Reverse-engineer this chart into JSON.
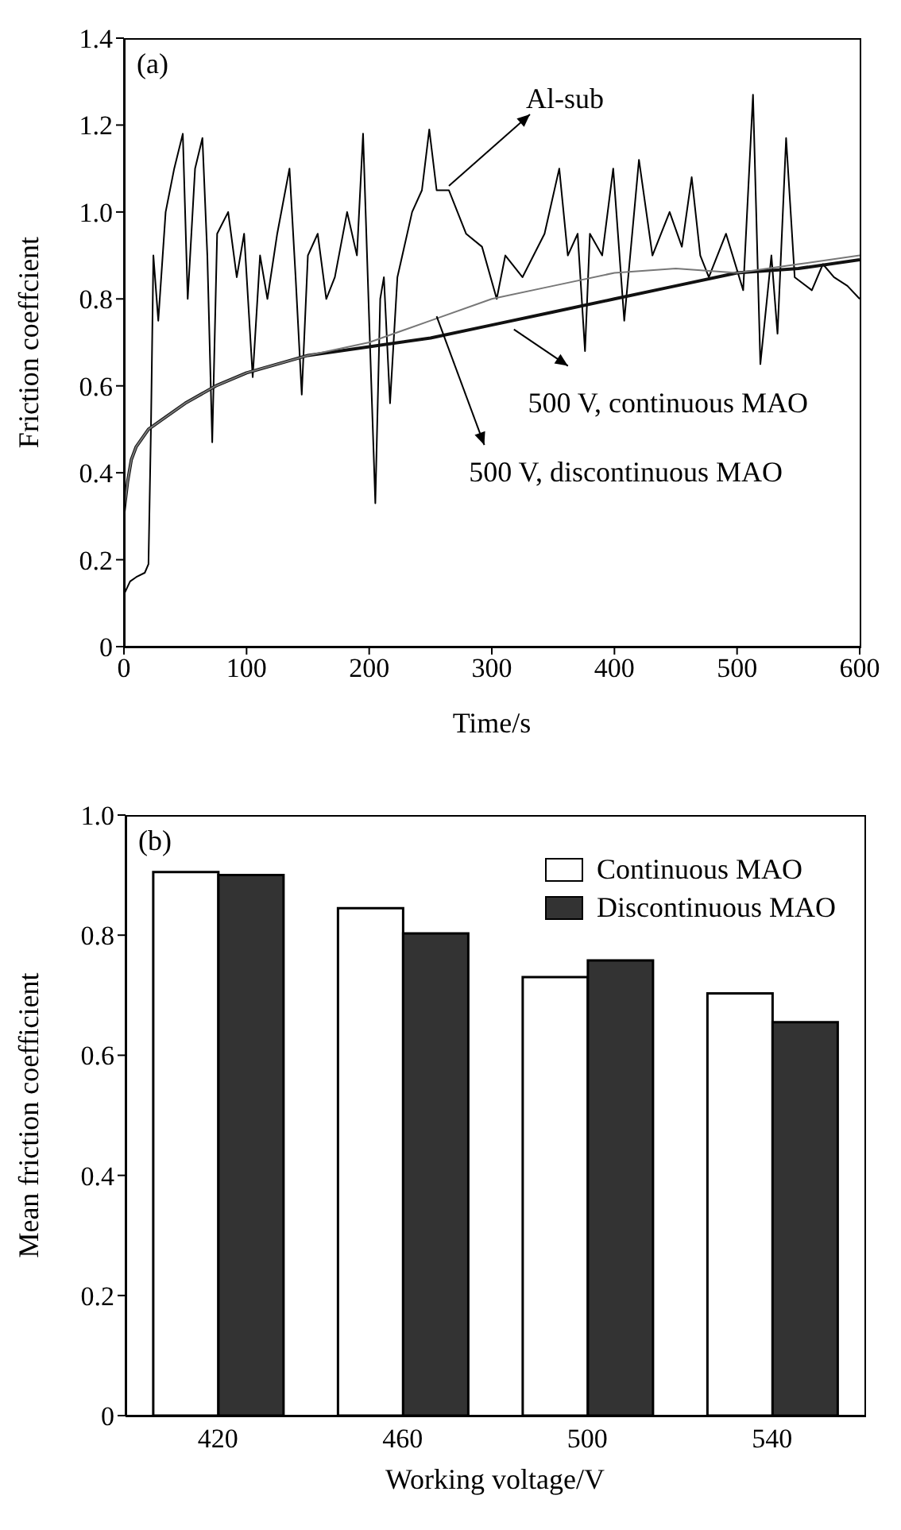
{
  "chart_data": [
    {
      "type": "line",
      "xlabel": "Time/s",
      "ylabel": "Friction coeffcient",
      "xlim": [
        0,
        600
      ],
      "xticks": [
        0,
        100,
        200,
        300,
        400,
        500,
        600
      ],
      "ylim": [
        0,
        1.4
      ],
      "yticks": [
        0,
        0.2,
        0.4,
        0.6,
        0.8,
        {
          "value": 1,
          "label": "1.0"
        },
        1.2,
        1.4
      ],
      "marker": "none",
      "line_style": "solid",
      "annotations": [
        "(a)",
        {
          "text": "Al-sub",
          "x": 265,
          "y": 1.06
        },
        {
          "text": "500 V, continuous MAO",
          "x": 318,
          "y": 0.73
        },
        {
          "text": "500 V, discontinuous MAO",
          "x": 255,
          "y": 0.76
        }
      ],
      "series": [
        {
          "color": "#000000",
          "x": [
            0,
            5,
            10,
            17,
            20,
            22,
            24,
            28,
            34,
            41,
            48,
            52,
            58,
            64,
            68,
            72,
            76,
            85,
            92,
            98,
            105,
            111,
            117,
            125,
            135,
            140,
            145,
            150,
            158,
            165,
            172,
            182,
            190,
            195,
            200,
            205,
            209,
            212,
            217,
            223,
            235,
            243,
            249,
            255,
            265,
            279,
            292,
            304,
            311,
            325,
            343,
            355,
            362,
            370,
            376,
            380,
            390,
            399,
            408,
            420,
            431,
            445,
            455,
            463,
            470,
            477,
            491,
            505,
            513,
            519,
            528,
            533,
            540,
            547,
            561,
            570,
            579,
            590,
            600
          ],
          "values": [
            0.12,
            0.15,
            0.16,
            0.17,
            0.19,
            0.5,
            0.9,
            0.75,
            1.0,
            1.1,
            1.18,
            0.8,
            1.1,
            1.17,
            0.9,
            0.47,
            0.95,
            1.0,
            0.85,
            0.95,
            0.62,
            0.9,
            0.8,
            0.95,
            1.1,
            0.85,
            0.58,
            0.9,
            0.95,
            0.8,
            0.85,
            1.0,
            0.9,
            1.18,
            0.75,
            0.33,
            0.8,
            0.85,
            0.56,
            0.85,
            1.0,
            1.05,
            1.19,
            1.05,
            1.05,
            0.95,
            0.92,
            0.8,
            0.9,
            0.85,
            0.95,
            1.1,
            0.9,
            0.95,
            0.68,
            0.95,
            0.9,
            1.1,
            0.75,
            1.12,
            0.9,
            1.0,
            0.92,
            1.08,
            0.9,
            0.85,
            0.95,
            0.82,
            1.27,
            0.65,
            0.9,
            0.72,
            1.17,
            0.85,
            0.82,
            0.88,
            0.85,
            0.83,
            0.8
          ]
        },
        {
          "color": "#111111",
          "x": [
            0,
            3,
            6,
            10,
            15,
            20,
            30,
            50,
            75,
            100,
            150,
            200,
            250,
            300,
            350,
            400,
            450,
            500,
            550,
            600
          ],
          "values": [
            0.31,
            0.38,
            0.43,
            0.46,
            0.48,
            0.5,
            0.52,
            0.56,
            0.6,
            0.63,
            0.67,
            0.69,
            0.71,
            0.74,
            0.77,
            0.8,
            0.83,
            0.86,
            0.87,
            0.89
          ]
        },
        {
          "color": "#777777",
          "x": [
            0,
            3,
            6,
            10,
            15,
            20,
            30,
            50,
            75,
            100,
            150,
            200,
            250,
            300,
            350,
            400,
            450,
            500,
            550,
            600
          ],
          "values": [
            0.31,
            0.38,
            0.43,
            0.46,
            0.48,
            0.5,
            0.52,
            0.56,
            0.6,
            0.63,
            0.67,
            0.7,
            0.75,
            0.8,
            0.83,
            0.86,
            0.87,
            0.86,
            0.88,
            0.9
          ]
        }
      ]
    },
    {
      "type": "bar",
      "xlabel": "Working voltage/V",
      "ylabel": "Mean friction coefficient",
      "categories": [
        "420",
        "460",
        "500",
        "540"
      ],
      "ylim": [
        0,
        1
      ],
      "yticks": [
        0,
        0.2,
        0.4,
        0.6,
        0.8,
        {
          "value": 1,
          "label": "1.0"
        }
      ],
      "legend": "top right",
      "annotations": [
        "(b)"
      ],
      "series": [
        {
          "name": "Continuous MAO",
          "color": "#ffffff",
          "values": [
            0.905,
            0.845,
            0.73,
            0.703
          ]
        },
        {
          "name": "Discontinuous MAO",
          "color": "#333333",
          "values": [
            0.9,
            0.803,
            0.758,
            0.655
          ]
        }
      ]
    }
  ]
}
